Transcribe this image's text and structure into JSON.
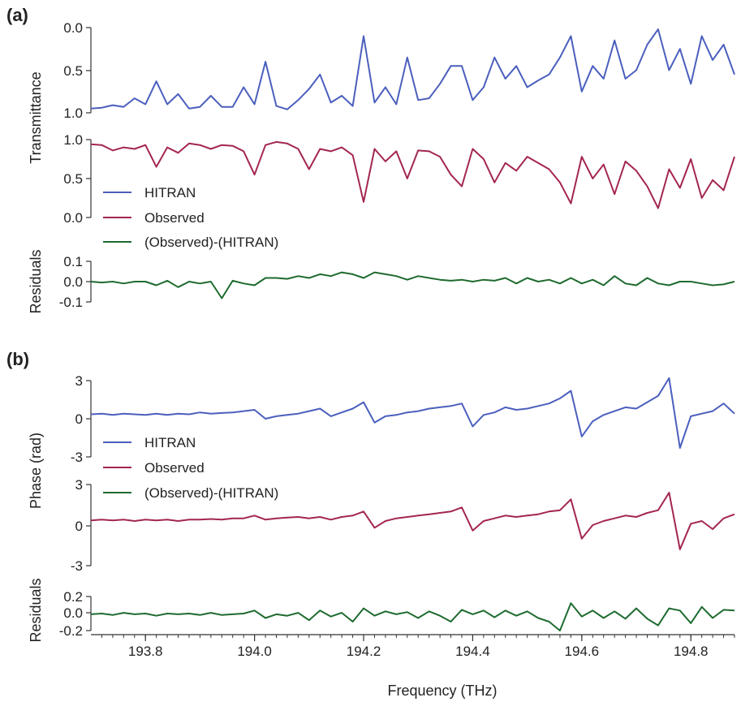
{
  "colors": {
    "hitran": "#4b5fbd",
    "observed": "#a3264f",
    "residual": "#1e6b2f",
    "axis": "#333333"
  },
  "panels": {
    "a": "(a)",
    "b": "(b)"
  },
  "xaxis": {
    "label": "Frequency (THz)",
    "ticks": [
      "193.8",
      "194.0",
      "194.2",
      "194.4",
      "194.6",
      "194.8"
    ]
  },
  "legend": {
    "hitran": "HITRAN",
    "observed": "Observed",
    "residual": "(Observed)-(HITRAN)"
  },
  "chart_data": [
    {
      "type": "line",
      "panel": "(a)",
      "ylabel": "Transmittance",
      "xlim": [
        193.7,
        194.88
      ],
      "x": [
        193.7,
        193.72,
        193.74,
        193.76,
        193.78,
        193.8,
        193.82,
        193.84,
        193.86,
        193.88,
        193.9,
        193.92,
        193.94,
        193.96,
        193.98,
        194.0,
        194.02,
        194.04,
        194.06,
        194.08,
        194.1,
        194.12,
        194.14,
        194.16,
        194.18,
        194.2,
        194.22,
        194.24,
        194.26,
        194.28,
        194.3,
        194.32,
        194.34,
        194.36,
        194.38,
        194.4,
        194.42,
        194.44,
        194.46,
        194.48,
        194.5,
        194.52,
        194.54,
        194.56,
        194.58,
        194.6,
        194.62,
        194.64,
        194.66,
        194.68,
        194.7,
        194.72,
        194.74,
        194.76,
        194.78,
        194.8,
        194.82,
        194.84,
        194.86,
        194.88
      ],
      "series": [
        {
          "name": "HITRAN",
          "axis": "top",
          "ylim": [
            1.0,
            0.0
          ],
          "ticks": [
            "0.0",
            "0.5",
            "1.0"
          ],
          "values": [
            0.95,
            0.94,
            0.91,
            0.93,
            0.83,
            0.9,
            0.63,
            0.9,
            0.78,
            0.95,
            0.93,
            0.8,
            0.93,
            0.93,
            0.7,
            0.9,
            0.4,
            0.92,
            0.96,
            0.85,
            0.72,
            0.55,
            0.88,
            0.8,
            0.92,
            0.1,
            0.88,
            0.7,
            0.9,
            0.35,
            0.85,
            0.83,
            0.66,
            0.45,
            0.45,
            0.85,
            0.7,
            0.35,
            0.6,
            0.45,
            0.7,
            0.62,
            0.55,
            0.35,
            0.1,
            0.75,
            0.45,
            0.6,
            0.15,
            0.6,
            0.5,
            0.2,
            0.02,
            0.5,
            0.25,
            0.66,
            0.1,
            0.38,
            0.2,
            0.55
          ]
        },
        {
          "name": "Observed",
          "axis": "middle",
          "ylim": [
            0.0,
            1.0
          ],
          "ticks": [
            "1.0",
            "0.5",
            "0.0"
          ],
          "values": [
            0.94,
            0.93,
            0.86,
            0.9,
            0.88,
            0.93,
            0.65,
            0.9,
            0.83,
            0.95,
            0.93,
            0.88,
            0.93,
            0.92,
            0.85,
            0.55,
            0.93,
            0.97,
            0.95,
            0.88,
            0.62,
            0.88,
            0.85,
            0.9,
            0.8,
            0.2,
            0.88,
            0.72,
            0.85,
            0.5,
            0.86,
            0.85,
            0.78,
            0.55,
            0.4,
            0.88,
            0.75,
            0.45,
            0.7,
            0.6,
            0.78,
            0.7,
            0.62,
            0.45,
            0.18,
            0.78,
            0.5,
            0.68,
            0.3,
            0.72,
            0.6,
            0.4,
            0.12,
            0.62,
            0.38,
            0.75,
            0.25,
            0.48,
            0.35,
            0.78
          ]
        },
        {
          "name": "(Observed)-(HITRAN)",
          "axis": "residual",
          "ylabel": "Residuals",
          "ylim": [
            -0.12,
            0.1
          ],
          "ticks": [
            "0.1",
            "0.0",
            "-0.1"
          ],
          "values": [
            -0.01,
            -0.015,
            -0.01,
            -0.02,
            -0.01,
            -0.01,
            -0.03,
            -0.005,
            -0.04,
            -0.01,
            -0.02,
            -0.01,
            -0.1,
            -0.005,
            -0.02,
            -0.03,
            0.01,
            0.01,
            0.005,
            0.02,
            0.01,
            0.03,
            0.02,
            0.04,
            0.03,
            0.01,
            0.04,
            0.03,
            0.02,
            0.0,
            0.02,
            0.01,
            0.0,
            -0.005,
            0.0,
            -0.01,
            0.0,
            -0.005,
            0.01,
            -0.02,
            0.01,
            -0.01,
            0.0,
            -0.02,
            0.01,
            -0.02,
            0.0,
            -0.03,
            0.02,
            -0.02,
            -0.03,
            0.01,
            -0.02,
            -0.03,
            -0.01,
            -0.01,
            -0.02,
            -0.03,
            -0.025,
            -0.01
          ]
        }
      ]
    },
    {
      "type": "line",
      "panel": "(b)",
      "ylabel": "Phase (rad)",
      "xlim": [
        193.7,
        194.88
      ],
      "x": [
        193.7,
        193.72,
        193.74,
        193.76,
        193.78,
        193.8,
        193.82,
        193.84,
        193.86,
        193.88,
        193.9,
        193.92,
        193.94,
        193.96,
        193.98,
        194.0,
        194.02,
        194.04,
        194.06,
        194.08,
        194.1,
        194.12,
        194.14,
        194.16,
        194.18,
        194.2,
        194.22,
        194.24,
        194.26,
        194.28,
        194.3,
        194.32,
        194.34,
        194.36,
        194.38,
        194.4,
        194.42,
        194.44,
        194.46,
        194.48,
        194.5,
        194.52,
        194.54,
        194.56,
        194.58,
        194.6,
        194.62,
        194.64,
        194.66,
        194.68,
        194.7,
        194.72,
        194.74,
        194.76,
        194.78,
        194.8,
        194.82,
        194.84,
        194.86,
        194.88
      ],
      "series": [
        {
          "name": "HITRAN",
          "axis": "top",
          "ylim": [
            -3,
            3
          ],
          "ticks": [
            "3",
            "0",
            "-3"
          ],
          "values": [
            0.35,
            0.4,
            0.3,
            0.4,
            0.35,
            0.3,
            0.4,
            0.3,
            0.4,
            0.35,
            0.5,
            0.4,
            0.45,
            0.5,
            0.6,
            0.7,
            0.0,
            0.2,
            0.3,
            0.4,
            0.6,
            0.8,
            0.2,
            0.5,
            0.8,
            1.3,
            -0.3,
            0.2,
            0.3,
            0.5,
            0.6,
            0.8,
            0.9,
            1.0,
            1.2,
            -0.6,
            0.3,
            0.5,
            0.9,
            0.7,
            0.8,
            1.0,
            1.2,
            1.6,
            2.2,
            -1.4,
            -0.2,
            0.3,
            0.6,
            0.9,
            0.8,
            1.3,
            1.8,
            3.2,
            -2.3,
            0.2,
            0.4,
            0.6,
            1.2,
            0.4
          ]
        },
        {
          "name": "Observed",
          "axis": "middle",
          "ylim": [
            -3,
            3
          ],
          "ticks": [
            "3",
            "0",
            "-3"
          ],
          "values": [
            0.35,
            0.4,
            0.35,
            0.4,
            0.3,
            0.4,
            0.35,
            0.4,
            0.3,
            0.4,
            0.4,
            0.45,
            0.4,
            0.5,
            0.5,
            0.7,
            0.4,
            0.5,
            0.55,
            0.6,
            0.5,
            0.6,
            0.4,
            0.6,
            0.7,
            1.0,
            -0.2,
            0.3,
            0.5,
            0.6,
            0.7,
            0.8,
            0.9,
            1.0,
            1.3,
            -0.4,
            0.3,
            0.5,
            0.7,
            0.6,
            0.7,
            0.8,
            1.0,
            1.1,
            1.9,
            -1.0,
            0.0,
            0.3,
            0.5,
            0.7,
            0.6,
            0.9,
            1.1,
            2.4,
            -1.8,
            0.1,
            0.3,
            -0.3,
            0.5,
            0.8
          ]
        },
        {
          "name": "(Observed)-(HITRAN)",
          "axis": "residual",
          "ylabel": "Residuals",
          "ylim": [
            -0.22,
            0.24
          ],
          "ticks": [
            "0.2",
            "0.0",
            "-0.2"
          ],
          "values": [
            0.0,
            0.01,
            -0.01,
            0.02,
            0.0,
            0.01,
            -0.02,
            0.01,
            0.0,
            0.01,
            -0.01,
            0.02,
            -0.01,
            0.0,
            0.01,
            0.05,
            -0.05,
            0.0,
            -0.02,
            0.02,
            -0.08,
            0.05,
            -0.03,
            0.02,
            -0.1,
            0.08,
            -0.02,
            0.04,
            0.0,
            0.03,
            -0.05,
            0.04,
            -0.02,
            -0.1,
            0.06,
            0.0,
            0.05,
            -0.04,
            0.05,
            -0.02,
            0.04,
            -0.05,
            -0.1,
            -0.22,
            0.15,
            -0.03,
            0.05,
            -0.05,
            0.04,
            -0.06,
            0.08,
            -0.06,
            -0.15,
            0.08,
            0.05,
            -0.12,
            0.1,
            -0.05,
            0.06,
            0.05
          ]
        }
      ]
    }
  ]
}
